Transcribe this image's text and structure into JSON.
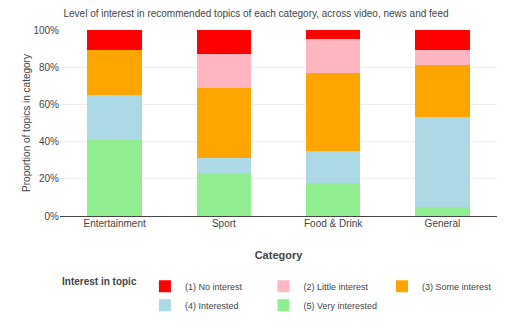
{
  "chart_data": {
    "type": "bar",
    "stacked": true,
    "title": "Level of interest in recommended topics of each category, across video, news and feed",
    "xlabel": "Category",
    "ylabel": "Proportion of topics in category",
    "legend_title": "Interest in topic",
    "legend": "bottom",
    "categories": [
      "Entertainment",
      "Sport",
      "Food & Drink",
      "General"
    ],
    "series": [
      {
        "name": "(5) Very interested",
        "color": "#90ee90",
        "values": [
          41,
          23,
          18,
          5
        ]
      },
      {
        "name": "(4) Interested",
        "color": "#add8e6",
        "values": [
          24,
          8,
          17,
          48
        ]
      },
      {
        "name": "(3) Some interest",
        "color": "#ffa500",
        "values": [
          24,
          38,
          42,
          28
        ]
      },
      {
        "name": "(2) Little interest",
        "color": "#ffb6c1",
        "values": [
          0,
          18,
          18,
          8
        ]
      },
      {
        "name": "(1) No interest",
        "color": "#ff0000",
        "values": [
          11,
          13,
          5,
          11
        ]
      }
    ],
    "ylim": [
      0,
      100
    ],
    "yticks": [
      {
        "value": 0,
        "label": "0%"
      },
      {
        "value": 20,
        "label": "20%"
      },
      {
        "value": 40,
        "label": "40%"
      },
      {
        "value": 60,
        "label": "60%"
      },
      {
        "value": 80,
        "label": "80%"
      },
      {
        "value": 100,
        "label": "100%"
      }
    ],
    "grid": true
  }
}
